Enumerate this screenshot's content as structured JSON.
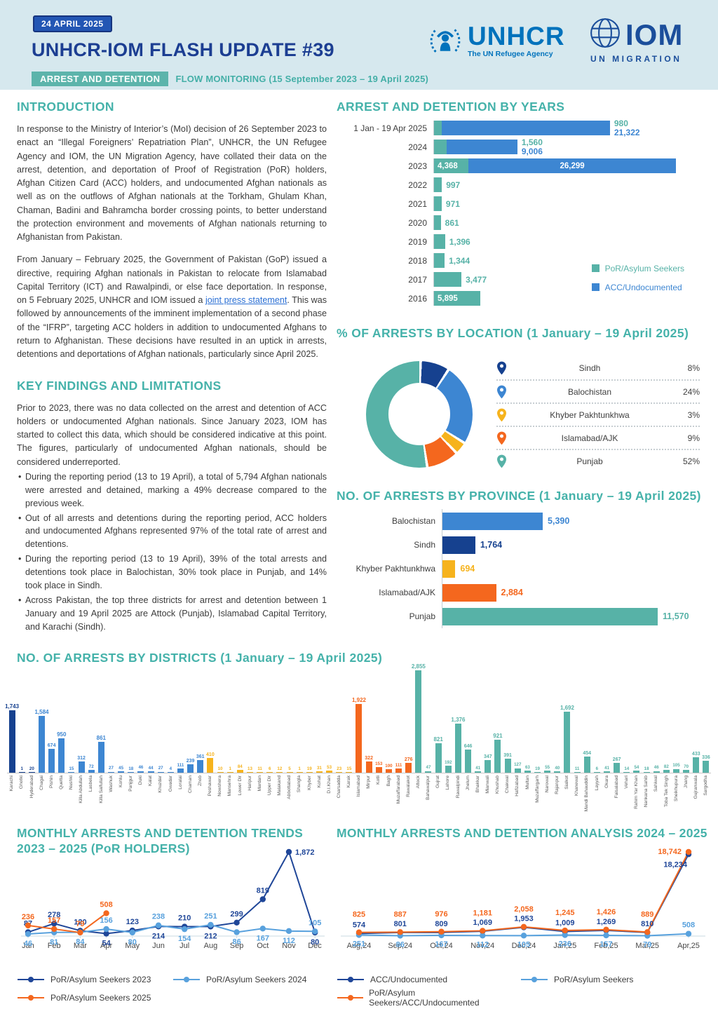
{
  "colors": {
    "teal": "#57b2a7",
    "blue": "#3d86d2",
    "dark_blue": "#16418f",
    "navy": "#1f4698",
    "light_blue": "#58a1dd",
    "orange": "#f4671e",
    "yellow": "#f6b31d",
    "heading_teal": "#45b2aa",
    "title_navy": "#1c3e92",
    "badge_blue": "#2356b4",
    "badge_teal": "#5cb4ab",
    "unhcr_blue": "#0072bc",
    "iom_blue": "#1b4e9b",
    "header_band": "#d6e8ee"
  },
  "header": {
    "date_badge": "24 APRIL 2025",
    "title": "UNHCR-IOM FLASH UPDATE #39",
    "unhcr_word": "UNHCR",
    "unhcr_tagline": "The UN Refugee Agency",
    "iom_word": "IOM",
    "iom_tagline": "UN MIGRATION",
    "topic_badge": "ARREST AND DETENTION",
    "subtitle": "FLOW MONITORING (15 September 2023 – 19 April 2025)"
  },
  "introduction": {
    "heading": "INTRODUCTION",
    "para1": "In response to the Ministry of Interior’s (MoI) decision of 26 September 2023 to enact an “Illegal Foreigners’ Repatriation Plan”, UNHCR, the UN Refugee Agency and IOM, the UN Migration Agency, have collated their data on the arrest, detention, and deportation of Proof of Registration (PoR) holders, Afghan Citizen Card (ACC) holders, and undocumented Afghan nationals as well as on the outflows of Afghan nationals at the Torkham, Ghulam Khan, Chaman, Badini and Bahramcha border crossing points, to better understand the protection environment and movements of Afghan nationals returning to Afghanistan from Pakistan.",
    "para2_before_link": "From January – February 2025, the Government of Pakistan (GoP) issued a directive, requiring Afghan nationals in Pakistan to relocate from Islamabad Capital Territory (ICT) and Rawalpindi, or else face deportation. In response, on 5 February 2025, UNHCR and IOM issued a ",
    "link_text": "joint press statement",
    "para2_after_link": ". This was followed by announcements of the imminent implementation of a second phase of the “IFRP”, targeting ACC holders in addition to undocumented Afghans to return to Afghanistan. These decisions have resulted in an uptick in arrests, detentions and deportations of Afghan nationals, particularly since April 2025."
  },
  "key_findings": {
    "heading": "KEY FINDINGS AND LIMITATIONS",
    "lead": "Prior to 2023, there was no data collected on the arrest and detention of ACC holders or undocumented Afghan nationals. Since January 2023, IOM has started to collect this data, which should be considered indicative at this point. The figures, particularly of undocumented Afghan nationals, should be considered underreported.",
    "bullets": [
      "During the reporting period (13 to 19 April), a total of 5,794 Afghan nationals were arrested and detained, marking a 49% decrease compared to the previous week.",
      "Out of all arrests and detentions during the reporting period, ACC holders and undocumented Afghans represented 97% of the total rate of arrest and detentions.",
      "During the reporting period (13 to 19 April), 39% of the total arrests and detentions took place in Balochistan, 30% took place in Punjab, and 14% took place in Sindh.",
      "Across Pakistan, the top three districts for arrest and detention between 1 January and 19 April 2025 are Attock (Punjab), Islamabad Capital Territory, and Karachi (Sindh)."
    ]
  },
  "chart_data": [
    {
      "id": "years",
      "type": "bar",
      "orientation": "horizontal-stacked",
      "title": "ARREST AND DETENTION BY YEARS",
      "categories": [
        "1 Jan - 19 Apr 2025",
        "2024",
        "2023",
        "2022",
        "2021",
        "2020",
        "2019",
        "2018",
        "2017",
        "2016"
      ],
      "series": [
        {
          "name": "PoR/Asylum Seekers",
          "color_key": "teal",
          "values": [
            980,
            1560,
            4368,
            997,
            971,
            861,
            1396,
            1344,
            3477,
            5895
          ]
        },
        {
          "name": "ACC/Undocumented",
          "color_key": "blue",
          "values": [
            21322,
            9006,
            26299,
            null,
            null,
            null,
            null,
            null,
            null,
            null
          ]
        }
      ],
      "xmax": 30667,
      "legend_position": "bottom-right-inside"
    },
    {
      "id": "location",
      "type": "pie",
      "title": "% OF ARRESTS BY LOCATION (1 January – 19 April 2025)",
      "slices": [
        {
          "label": "Sindh",
          "pct": 8,
          "color_key": "dark_blue"
        },
        {
          "label": "Balochistan",
          "pct": 24,
          "color_key": "blue"
        },
        {
          "label": "Khyber Pakhtunkhwa",
          "pct": 3,
          "color_key": "yellow"
        },
        {
          "label": "Islamabad/AJK",
          "pct": 9,
          "color_key": "orange"
        },
        {
          "label": "Punjab",
          "pct": 52,
          "color_key": "teal"
        }
      ]
    },
    {
      "id": "province",
      "type": "bar",
      "orientation": "horizontal",
      "title": "NO. OF ARRESTS BY PROVINCE (1 January – 19 April 2025)",
      "categories": [
        "Balochistan",
        "Sindh",
        "Khyber Pakhtunkhwa",
        "Islamabad/AJK",
        "Punjab"
      ],
      "values": [
        5390,
        1764,
        694,
        2884,
        11570
      ],
      "color_keys": [
        "blue",
        "dark_blue",
        "yellow",
        "orange",
        "teal"
      ],
      "xmax": 13000
    },
    {
      "id": "districts",
      "type": "bar",
      "orientation": "vertical",
      "title": "NO. OF ARRESTS BY DISTRICTS (1 January – 19 April 2025)",
      "ymax": 2855,
      "items": [
        {
          "name": "Karachi",
          "v": 1743,
          "g": "dark_blue"
        },
        {
          "name": "Ghotki",
          "v": 1,
          "g": "dark_blue"
        },
        {
          "name": "Hyderabad",
          "v": 20,
          "g": "dark_blue"
        },
        {
          "name": "Chagai",
          "v": 1584,
          "g": "blue"
        },
        {
          "name": "Pishin",
          "v": 674,
          "g": "blue"
        },
        {
          "name": "Quetta",
          "v": 950,
          "g": "blue"
        },
        {
          "name": "Nushki",
          "v": 15,
          "g": "blue"
        },
        {
          "name": "Killa Abdullah",
          "v": 312,
          "g": "blue"
        },
        {
          "name": "Lasbela",
          "v": 72,
          "g": "blue"
        },
        {
          "name": "Killa Saifullah",
          "v": 861,
          "g": "blue"
        },
        {
          "name": "Washuk",
          "v": 27,
          "g": "blue"
        },
        {
          "name": "Kohlu",
          "v": 45,
          "g": "blue"
        },
        {
          "name": "Panjgur",
          "v": 18,
          "g": "blue"
        },
        {
          "name": "Duki",
          "v": 46,
          "g": "blue"
        },
        {
          "name": "Kalat",
          "v": 44,
          "g": "blue"
        },
        {
          "name": "Khuzdar",
          "v": 27,
          "g": "blue"
        },
        {
          "name": "Gwadar",
          "v": 4,
          "g": "blue"
        },
        {
          "name": "Loralai",
          "v": 111,
          "g": "blue"
        },
        {
          "name": "Chaman",
          "v": 239,
          "g": "blue"
        },
        {
          "name": "Zhob",
          "v": 361,
          "g": "blue"
        },
        {
          "name": "Peshawar",
          "v": 410,
          "g": "yellow"
        },
        {
          "name": "Nowshera",
          "v": 10,
          "g": "yellow"
        },
        {
          "name": "Mansehra",
          "v": 1,
          "g": "yellow"
        },
        {
          "name": "Lower Dir",
          "v": 84,
          "g": "yellow"
        },
        {
          "name": "Haripur",
          "v": 13,
          "g": "yellow"
        },
        {
          "name": "Mardan",
          "v": 11,
          "g": "yellow"
        },
        {
          "name": "Upper Dir",
          "v": 6,
          "g": "yellow"
        },
        {
          "name": "Malakand",
          "v": 12,
          "g": "yellow"
        },
        {
          "name": "Abbottabad",
          "v": 5,
          "g": "yellow"
        },
        {
          "name": "Shangla",
          "v": 1,
          "g": "yellow"
        },
        {
          "name": "Khyber",
          "v": 19,
          "g": "yellow"
        },
        {
          "name": "Kohat",
          "v": 31,
          "g": "yellow"
        },
        {
          "name": "D.I.Khan",
          "v": 53,
          "g": "yellow"
        },
        {
          "name": "Charsadda",
          "v": 23,
          "g": "yellow"
        },
        {
          "name": "Karak",
          "v": 15,
          "g": "yellow"
        },
        {
          "name": "Islamabad",
          "v": 1922,
          "g": "orange"
        },
        {
          "name": "Mirpur",
          "v": 322,
          "g": "orange"
        },
        {
          "name": "Kotli",
          "v": 153,
          "g": "orange"
        },
        {
          "name": "Bagh",
          "v": 100,
          "g": "orange"
        },
        {
          "name": "Muzaffarabad",
          "v": 111,
          "g": "orange"
        },
        {
          "name": "Rawalakot",
          "v": 276,
          "g": "orange"
        },
        {
          "name": "Attock",
          "v": 2855,
          "g": "teal"
        },
        {
          "name": "Bahawalpur",
          "v": 47,
          "g": "teal"
        },
        {
          "name": "Gujrat",
          "v": 821,
          "g": "teal"
        },
        {
          "name": "Lahore",
          "v": 192,
          "g": "teal"
        },
        {
          "name": "Rawalpindi",
          "v": 1376,
          "g": "teal"
        },
        {
          "name": "Jhelum",
          "v": 646,
          "g": "teal"
        },
        {
          "name": "Bhakkar",
          "v": 41,
          "g": "teal"
        },
        {
          "name": "Mianwali",
          "v": 347,
          "g": "teal"
        },
        {
          "name": "Khushab",
          "v": 921,
          "g": "teal"
        },
        {
          "name": "Chakwal",
          "v": 391,
          "g": "teal"
        },
        {
          "name": "Hafizabad",
          "v": 127,
          "g": "teal"
        },
        {
          "name": "Multan",
          "v": 63,
          "g": "teal"
        },
        {
          "name": "Muzaffargarh",
          "v": 19,
          "g": "teal"
        },
        {
          "name": "Narowal",
          "v": 55,
          "g": "teal"
        },
        {
          "name": "Rajanpur",
          "v": 40,
          "g": "teal"
        },
        {
          "name": "Sialkot",
          "v": 1692,
          "g": "teal"
        },
        {
          "name": "Khanewal",
          "v": 11,
          "g": "teal"
        },
        {
          "name": "Mandi Bahauddin",
          "v": 454,
          "g": "teal"
        },
        {
          "name": "Layyah",
          "v": 6,
          "g": "teal"
        },
        {
          "name": "Okara",
          "v": 41,
          "g": "teal"
        },
        {
          "name": "Faisalabad",
          "v": 267,
          "g": "teal"
        },
        {
          "name": "Vehari",
          "v": 14,
          "g": "teal"
        },
        {
          "name": "Rahim Yar Khan",
          "v": 54,
          "g": "teal"
        },
        {
          "name": "Nankana Sahib",
          "v": 18,
          "g": "teal"
        },
        {
          "name": "Sahiwal",
          "v": 46,
          "g": "teal"
        },
        {
          "name": "Toba Tek Singh",
          "v": 82,
          "g": "teal"
        },
        {
          "name": "Sheikhupura",
          "v": 105,
          "g": "teal"
        },
        {
          "name": "Jhang",
          "v": 70,
          "g": "teal"
        },
        {
          "name": "Gujranwala",
          "v": 433,
          "g": "teal"
        },
        {
          "name": "Sargodha",
          "v": 336,
          "g": "teal"
        }
      ]
    },
    {
      "id": "monthly_trends",
      "type": "line",
      "title": "MONTHLY ARRESTS AND DETENTION TRENDS 2023 – 2025 (PoR HOLDERS)",
      "x": [
        "Jan",
        "Feb",
        "Mar",
        "Apr",
        "May",
        "Jun",
        "Jul",
        "Aug",
        "Sep",
        "Oct",
        "Nov",
        "Dec"
      ],
      "ymax": 1872,
      "series": [
        {
          "name": "PoR/Asylum Seekers 2023",
          "color_key": "navy",
          "values": [
            87,
            278,
            120,
            54,
            123,
            214,
            210,
            212,
            299,
            819,
            1872,
            80
          ]
        },
        {
          "name": "PoR/Asylum Seekers 2024",
          "color_key": "light_blue",
          "values": [
            46,
            81,
            84,
            156,
            80,
            238,
            154,
            251,
            86,
            167,
            112,
            105
          ]
        },
        {
          "name": "PoR/Asylum Seekers 2025",
          "color_key": "orange",
          "values": [
            236,
            157,
            79,
            508,
            null,
            null,
            null,
            null,
            null,
            null,
            null,
            null
          ]
        }
      ]
    },
    {
      "id": "monthly_analysis",
      "type": "line",
      "title": "MONTHLY ARRESTS AND DETENTION ANALYSIS 2024 – 2025",
      "x": [
        "Aug,24",
        "Sep,24",
        "Oct,24",
        "Nov,24",
        "Dec,24",
        "Jan,25",
        "Feb,25",
        "Mar,25",
        "Apr,25"
      ],
      "ymax": 18742,
      "series": [
        {
          "name": "ACC/Undocumented",
          "color_key": "navy",
          "values": [
            574,
            801,
            809,
            1069,
            1953,
            1009,
            1269,
            810,
            18234
          ]
        },
        {
          "name": "PoR/Asylum Seekers",
          "color_key": "light_blue",
          "values": [
            251,
            86,
            167,
            112,
            105,
            236,
            157,
            79,
            508
          ]
        },
        {
          "name": "PoR/Asylum Seekers/ACC/Undocumented",
          "color_key": "orange",
          "values": [
            825,
            887,
            976,
            1181,
            2058,
            1245,
            1426,
            889,
            18742
          ]
        }
      ]
    }
  ]
}
